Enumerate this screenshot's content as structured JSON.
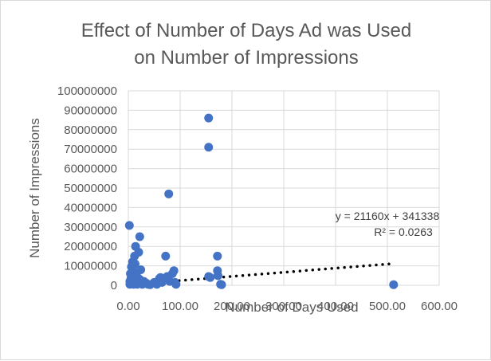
{
  "chart_data": {
    "type": "scatter",
    "title": [
      "Effect of Number of Days Ad was Used",
      "on Number of Impressions"
    ],
    "xlabel": "Number of Days Used",
    "ylabel": "Number of Impressions",
    "xlim": [
      0,
      600
    ],
    "ylim": [
      0,
      100000000
    ],
    "x_ticks": [
      "0.00",
      "100.00",
      "200.00",
      "300.00",
      "400.00",
      "500.00",
      "600.00"
    ],
    "y_ticks": [
      "0",
      "10000000",
      "20000000",
      "30000000",
      "40000000",
      "50000000",
      "60000000",
      "70000000",
      "80000000",
      "90000000",
      "100000000"
    ],
    "grid": true,
    "point_color": "#4472c4",
    "trendline": {
      "type": "linear",
      "slope": 21160,
      "intercept": 341338,
      "x_range": [
        0,
        505
      ],
      "style": "dotted",
      "color": "#000000",
      "equation": "y = 21160x + 341338",
      "r_squared": "R² = 0.0263"
    },
    "points": [
      {
        "x": 2,
        "y": 30800000
      },
      {
        "x": 3,
        "y": 500000
      },
      {
        "x": 3,
        "y": 2000000
      },
      {
        "x": 4,
        "y": 6000000
      },
      {
        "x": 5,
        "y": 3500000
      },
      {
        "x": 6,
        "y": 9500000
      },
      {
        "x": 7,
        "y": 1000000
      },
      {
        "x": 8,
        "y": 12000000
      },
      {
        "x": 9,
        "y": 4500000
      },
      {
        "x": 10,
        "y": 7000000
      },
      {
        "x": 10,
        "y": 500000
      },
      {
        "x": 12,
        "y": 15000000
      },
      {
        "x": 12,
        "y": 2500000
      },
      {
        "x": 13,
        "y": 11000000
      },
      {
        "x": 14,
        "y": 20000000
      },
      {
        "x": 15,
        "y": 6500000
      },
      {
        "x": 16,
        "y": 1500000
      },
      {
        "x": 17,
        "y": 500000
      },
      {
        "x": 18,
        "y": 4000000
      },
      {
        "x": 20,
        "y": 17000000
      },
      {
        "x": 22,
        "y": 25000000
      },
      {
        "x": 22,
        "y": 3000000
      },
      {
        "x": 24,
        "y": 8000000
      },
      {
        "x": 25,
        "y": 1000000
      },
      {
        "x": 27,
        "y": 500000
      },
      {
        "x": 30,
        "y": 2000000
      },
      {
        "x": 32,
        "y": 1500000
      },
      {
        "x": 35,
        "y": 1000000
      },
      {
        "x": 38,
        "y": 500000
      },
      {
        "x": 42,
        "y": 300000
      },
      {
        "x": 50,
        "y": 1500000
      },
      {
        "x": 55,
        "y": 500000
      },
      {
        "x": 60,
        "y": 3500000
      },
      {
        "x": 62,
        "y": 4000000
      },
      {
        "x": 65,
        "y": 1500000
      },
      {
        "x": 68,
        "y": 2500000
      },
      {
        "x": 72,
        "y": 15000000
      },
      {
        "x": 75,
        "y": 4500000
      },
      {
        "x": 78,
        "y": 47000000
      },
      {
        "x": 80,
        "y": 2000000
      },
      {
        "x": 85,
        "y": 6000000
      },
      {
        "x": 88,
        "y": 7500000
      },
      {
        "x": 90,
        "y": 1500000
      },
      {
        "x": 92,
        "y": 500000
      },
      {
        "x": 155,
        "y": 86000000
      },
      {
        "x": 155,
        "y": 71000000
      },
      {
        "x": 155,
        "y": 4500000
      },
      {
        "x": 158,
        "y": 4000000
      },
      {
        "x": 172,
        "y": 15000000
      },
      {
        "x": 172,
        "y": 7500000
      },
      {
        "x": 173,
        "y": 5000000
      },
      {
        "x": 178,
        "y": 500000
      },
      {
        "x": 180,
        "y": 300000
      },
      {
        "x": 512,
        "y": 300000
      }
    ]
  }
}
